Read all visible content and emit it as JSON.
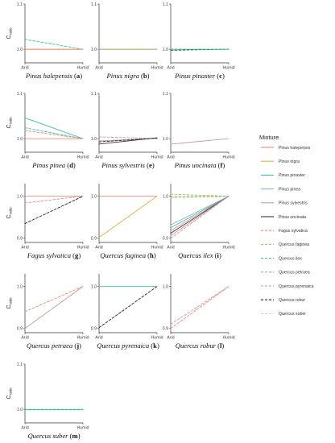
{
  "chart_data": {
    "type": "line",
    "y_label_main": "C",
    "y_label_sub": "ratio",
    "x_ticks": [
      "Arid",
      "Humid"
    ],
    "legend": {
      "title": "Mixture",
      "placement": "right",
      "entries": [
        {
          "name": "Pinus halepensis",
          "color": "#f4877c",
          "dash": false
        },
        {
          "name": "Pinus nigra",
          "color": "#e2b13c",
          "dash": false
        },
        {
          "name": "Pinus pinaster",
          "color": "#39c49c",
          "dash": false
        },
        {
          "name": "Pinus pinea",
          "color": "#8aaee0",
          "dash": false
        },
        {
          "name": "Pinus sylvestris",
          "color": "#c99a9e",
          "dash": false
        },
        {
          "name": "Pinus uncinata",
          "color": "#333333",
          "dash": false
        },
        {
          "name": "Fagus sylvatica",
          "color": "#f4877c",
          "dash": true
        },
        {
          "name": "Quercus faginea",
          "color": "#e2b13c",
          "dash": true
        },
        {
          "name": "Quercus ilex",
          "color": "#39c49c",
          "dash": true
        },
        {
          "name": "Quercus petraea",
          "color": "#8aaee0",
          "dash": true
        },
        {
          "name": "Quercus pyrenaica",
          "color": "#c99a9e",
          "dash": true
        },
        {
          "name": "Quercus robur",
          "color": "#222222",
          "dash": true
        },
        {
          "name": "Quercus suber",
          "color": "#f6c9a0",
          "dash": true
        }
      ]
    },
    "panels": [
      {
        "species": "Pinus halepensis",
        "letter": "a",
        "yticks": [
          "1.1",
          "1.0"
        ],
        "ylim": [
          0.97,
          1.1
        ],
        "series": [
          {
            "ref": 8,
            "values": [
              1.022,
              1.0
            ]
          },
          {
            "ref": 1,
            "values": [
              1.0,
              1.0
            ]
          },
          {
            "ref": 7,
            "values": [
              1.0,
              1.0
            ]
          },
          {
            "ref": 0,
            "values": [
              1.0,
              1.0
            ]
          }
        ]
      },
      {
        "species": "Pinus nigra",
        "letter": "b",
        "yticks": [
          "1.1",
          "1.0"
        ],
        "ylim": [
          0.97,
          1.1
        ],
        "series": [
          {
            "ref": 2,
            "values": [
              1.0,
              1.0
            ]
          },
          {
            "ref": 8,
            "values": [
              1.0,
              1.0
            ]
          },
          {
            "ref": 7,
            "values": [
              1.0,
              1.0
            ]
          }
        ]
      },
      {
        "species": "Pinus pinaster",
        "letter": "c",
        "yticks": [
          "1.1",
          "1.0"
        ],
        "ylim": [
          0.97,
          1.1
        ],
        "series": [
          {
            "ref": 11,
            "values": [
              0.998,
              1.0
            ]
          },
          {
            "ref": 8,
            "values": [
              1.0,
              1.0
            ]
          },
          {
            "ref": 2,
            "values": [
              1.0,
              1.0
            ]
          }
        ]
      },
      {
        "species": "Pinus pinea",
        "letter": "d",
        "yticks": [
          "1.1",
          "1.0"
        ],
        "ylim": [
          0.97,
          1.1
        ],
        "series": [
          {
            "ref": 0,
            "values": [
              1.0,
              1.0
            ]
          },
          {
            "ref": 2,
            "values": [
              1.046,
              1.0
            ]
          },
          {
            "ref": 8,
            "values": [
              1.024,
              1.0
            ]
          },
          {
            "ref": 6,
            "values": [
              1.018,
              1.0
            ]
          }
        ]
      },
      {
        "species": "Pinus sylvestris",
        "letter": "e",
        "yticks": [
          "1.1",
          "1.0"
        ],
        "ylim": [
          0.97,
          1.1
        ],
        "series": [
          {
            "ref": 10,
            "values": [
              1.004,
              1.0
            ]
          },
          {
            "ref": 4,
            "values": [
              0.995,
              1.001
            ]
          },
          {
            "ref": 11,
            "values": [
              0.993,
              1.001
            ]
          },
          {
            "ref": 5,
            "values": [
              0.988,
              1.002
            ]
          }
        ]
      },
      {
        "species": "Pinus uncinata",
        "letter": "f",
        "yticks": [
          "1.1",
          "1.0"
        ],
        "ylim": [
          0.97,
          1.1
        ],
        "series": [
          {
            "ref": 4,
            "values": [
              0.988,
              1.0
            ]
          }
        ]
      },
      {
        "species": "Fagus sylvatica",
        "letter": "g",
        "yticks": [
          "1.0",
          "0.9"
        ],
        "ylim": [
          0.89,
          1.03
        ],
        "series": [
          {
            "ref": 0,
            "values": [
              1.0,
              1.0
            ]
          },
          {
            "ref": 10,
            "values": [
              0.984,
              1.0
            ]
          },
          {
            "ref": 11,
            "values": [
              0.935,
              1.0
            ]
          }
        ]
      },
      {
        "species": "Quercus faginea",
        "letter": "h",
        "yticks": [
          "1.0",
          "0.9"
        ],
        "ylim": [
          0.89,
          1.03
        ],
        "series": [
          {
            "ref": 0,
            "values": [
              1.0,
              1.0
            ]
          },
          {
            "ref": 1,
            "values": [
              0.902,
              1.0
            ]
          }
        ]
      },
      {
        "species": "Quercus ilex",
        "letter": "i",
        "yticks": [
          "1.0",
          "0.9"
        ],
        "ylim": [
          0.89,
          1.03
        ],
        "series": [
          {
            "ref": 7,
            "values": [
              1.005,
              1.0
            ]
          },
          {
            "ref": 12,
            "values": [
              0.996,
              1.0
            ]
          },
          {
            "ref": 8,
            "values": [
              0.999,
              1.0
            ]
          },
          {
            "ref": 3,
            "values": [
              0.932,
              1.0
            ]
          },
          {
            "ref": 2,
            "values": [
              0.925,
              1.0
            ]
          },
          {
            "ref": 0,
            "values": [
              0.918,
              1.0
            ]
          },
          {
            "ref": 5,
            "values": [
              0.912,
              1.0
            ]
          },
          {
            "ref": 4,
            "values": [
              0.906,
              1.0
            ]
          },
          {
            "ref": 10,
            "values": [
              0.9,
              1.0
            ]
          }
        ]
      },
      {
        "species": "Quercus petraea",
        "letter": "j",
        "yticks": [
          "1.0",
          "0.9"
        ],
        "ylim": [
          0.89,
          1.03
        ],
        "series": [
          {
            "ref": 6,
            "values": [
              0.94,
              1.0
            ]
          },
          {
            "ref": 4,
            "values": [
              0.9,
              1.0
            ]
          }
        ]
      },
      {
        "species": "Quercus pyrenaica",
        "letter": "k",
        "yticks": [
          "1.0",
          "0.9"
        ],
        "ylim": [
          0.89,
          1.03
        ],
        "series": [
          {
            "ref": 2,
            "values": [
              1.0,
              1.0
            ]
          },
          {
            "ref": 11,
            "values": [
              0.902,
              1.0
            ]
          }
        ]
      },
      {
        "species": "Quercus robur",
        "letter": "l",
        "yticks": [
          "1.0",
          "0.9"
        ],
        "ylim": [
          0.89,
          1.03
        ],
        "series": [
          {
            "ref": 10,
            "values": [
              0.91,
              1.0
            ]
          },
          {
            "ref": 6,
            "values": [
              0.9,
              1.0
            ]
          }
        ]
      },
      {
        "species": "Quercus suber",
        "letter": "m",
        "yticks": [
          "1.1",
          "1.0"
        ],
        "ylim": [
          0.97,
          1.1
        ],
        "series": [
          {
            "ref": 8,
            "values": [
              1.0,
              1.0
            ]
          },
          {
            "ref": 2,
            "values": [
              0.999,
              0.999
            ]
          }
        ]
      }
    ]
  }
}
